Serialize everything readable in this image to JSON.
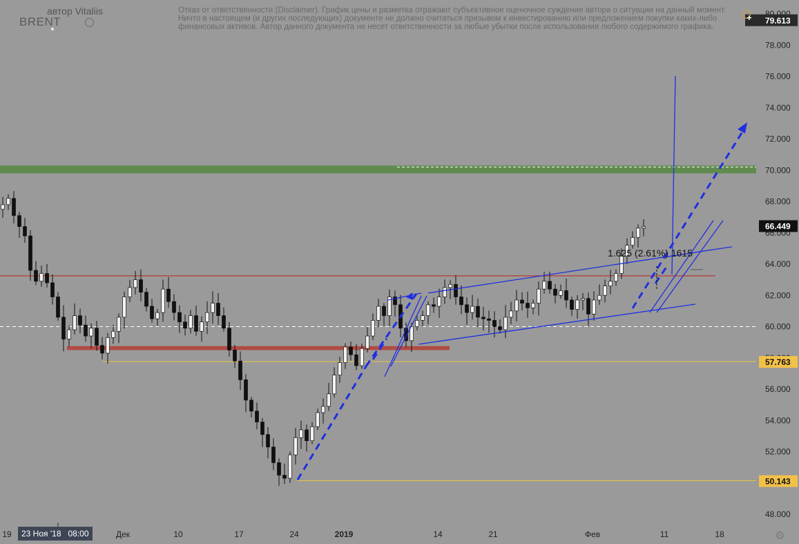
{
  "header": {
    "symbol": "BRENT",
    "author": "автор Vitaliis",
    "disclaimer": "Отказ от ответственности (Disclaimer). График цены и разметка отражают субъективное оценочное суждение автора о ситуации на данный момент. Ничто в настоящем (и других последующих) документе не должно считаться призывом к инвестированию или предложением покупки каких-либо финансовых активов. Автор данного документа не несет ответственности за любые убытки после использования любого содержимого графика."
  },
  "crosshair_date": "23 Ноя '18   08:00",
  "colors": {
    "background": "#9a9a9a",
    "resistance_zone": "#5f8c4e",
    "support_line": "#b24a44",
    "level_line": "#e8c548",
    "level_badge": "#f2c14a",
    "channel": "#1f2fe0",
    "price_badge": "#000000"
  },
  "chart_data": {
    "type": "candlestick",
    "y_range": [
      47.0,
      81.0
    ],
    "y_ticks": [
      "48.000",
      "50.000",
      "52.000",
      "54.000",
      "56.000",
      "58.000",
      "60.000",
      "62.000",
      "64.000",
      "66.000",
      "68.000",
      "70.000",
      "72.000",
      "74.000",
      "76.000",
      "78.000",
      "80.000"
    ],
    "x_labels": [
      {
        "label": "19",
        "bar": 0
      },
      {
        "label": "Дек",
        "bar": 21
      },
      {
        "label": "10",
        "bar": 31
      },
      {
        "label": "17",
        "bar": 42
      },
      {
        "label": "24",
        "bar": 52
      },
      {
        "label": "2019",
        "bar": 61
      },
      {
        "label": "14",
        "bar": 78
      },
      {
        "label": "21",
        "bar": 88
      },
      {
        "label": "Фев",
        "bar": 106
      },
      {
        "label": "11",
        "bar": 119
      },
      {
        "label": "18",
        "bar": 129
      }
    ],
    "closes": [
      67.8,
      68.2,
      67.1,
      66.4,
      65.8,
      63.6,
      62.9,
      63.4,
      62.8,
      61.9,
      60.6,
      59.2,
      59.8,
      60.7,
      60.1,
      59.4,
      59.9,
      58.8,
      58.3,
      59.3,
      59.7,
      60.6,
      61.9,
      62.5,
      63.0,
      62.2,
      61.3,
      60.5,
      60.9,
      62.4,
      61.6,
      60.9,
      60.3,
      59.9,
      60.7,
      59.7,
      60.3,
      60.9,
      61.5,
      60.7,
      59.9,
      58.5,
      57.8,
      56.6,
      55.3,
      54.6,
      53.9,
      53.1,
      52.3,
      51.3,
      50.5,
      50.3,
      51.8,
      52.9,
      53.4,
      52.7,
      53.6,
      54.5,
      54.9,
      55.7,
      56.9,
      57.7,
      58.7,
      58.2,
      57.5,
      58.6,
      59.4,
      60.4,
      61.3,
      60.7,
      61.9,
      61.4,
      59.9,
      59.1,
      60.0,
      60.4,
      60.7,
      61.4,
      61.3,
      61.9,
      62.5,
      62.7,
      61.9,
      61.4,
      60.9,
      61.3,
      60.6,
      60.5,
      60.4,
      60.0,
      59.8,
      60.6,
      61.0,
      61.7,
      61.5,
      61.2,
      61.5,
      62.4,
      62.9,
      62.4,
      62.0,
      62.3,
      61.7,
      61.1,
      61.7,
      61.8,
      60.8,
      61.7,
      62.0,
      62.6,
      62.9,
      63.4,
      64.5,
      65.2,
      65.7,
      66.3,
      66.4
    ],
    "bar_dates_note": "",
    "horizontal_levels": [
      {
        "name": "resistance-zone",
        "low": 69.8,
        "high": 70.3
      },
      {
        "name": "dashed-70",
        "value": 70.2
      },
      {
        "name": "support-zone",
        "low": 58.5,
        "high": 58.75
      },
      {
        "name": "red-line",
        "value": 63.25
      },
      {
        "name": "dashed-60",
        "value": 60.0
      },
      {
        "name": "yellow-57763",
        "value": 57.763
      },
      {
        "name": "yellow-50143",
        "value": 50.143
      }
    ],
    "price_labels": [
      {
        "text": "79.613",
        "value": 79.613,
        "style": "dark"
      },
      {
        "text": "66.449",
        "value": 66.449,
        "style": "black"
      },
      {
        "text": "57.763",
        "value": 57.763,
        "style": "yellow"
      },
      {
        "text": "50.143",
        "value": 50.143,
        "style": "yellow"
      }
    ],
    "annotation": "1.625 (2.61%) 1615"
  }
}
